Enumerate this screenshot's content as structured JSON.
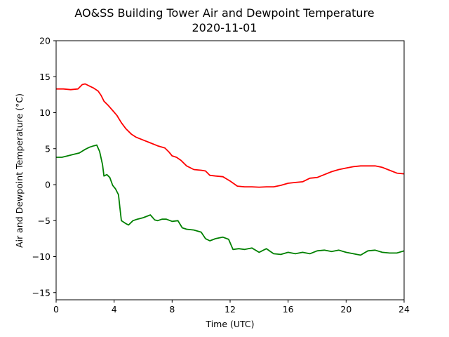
{
  "chart_data": {
    "type": "line",
    "title": "AO&SS Building Tower Air and Dewpoint Temperature",
    "subtitle": "2020-11-01",
    "xlabel": "Time (UTC)",
    "ylabel": "Air and Dewpoint Temperature (°C)",
    "xlim": [
      0,
      24
    ],
    "ylim": [
      -16,
      20
    ],
    "xticks": [
      0,
      4,
      8,
      12,
      16,
      20,
      24
    ],
    "yticks": [
      -15,
      -10,
      -5,
      0,
      5,
      10,
      15,
      20
    ],
    "grid": false,
    "legend": "none",
    "series": [
      {
        "color": "#ff0000",
        "x": [
          0,
          0.5,
          1.0,
          1.5,
          1.8,
          2.0,
          2.3,
          2.6,
          2.9,
          3.1,
          3.3,
          3.6,
          3.9,
          4.2,
          4.5,
          4.8,
          5.2,
          5.5,
          6.0,
          6.5,
          7.0,
          7.5,
          7.8,
          8.0,
          8.3,
          8.6,
          9.0,
          9.5,
          10.0,
          10.3,
          10.6,
          11.0,
          11.5,
          12.0,
          12.5,
          13.0,
          13.5,
          14.0,
          14.5,
          15.0,
          15.5,
          16.0,
          16.5,
          17.0,
          17.5,
          18.0,
          18.5,
          19.0,
          19.5,
          20.0,
          20.5,
          21.0,
          21.5,
          22.0,
          22.5,
          23.0,
          23.5,
          24.0
        ],
        "values": [
          13.3,
          13.3,
          13.2,
          13.3,
          13.9,
          14.0,
          13.7,
          13.4,
          13.0,
          12.4,
          11.6,
          11.0,
          10.3,
          9.6,
          8.6,
          7.8,
          7.0,
          6.6,
          6.2,
          5.8,
          5.4,
          5.1,
          4.5,
          4.0,
          3.8,
          3.4,
          2.6,
          2.1,
          2.0,
          1.9,
          1.3,
          1.2,
          1.1,
          0.5,
          -0.2,
          -0.3,
          -0.3,
          -0.35,
          -0.3,
          -0.3,
          -0.1,
          0.2,
          0.3,
          0.4,
          0.9,
          1.0,
          1.4,
          1.8,
          2.1,
          2.3,
          2.5,
          2.6,
          2.6,
          2.6,
          2.4,
          2.0,
          1.6,
          1.5
        ]
      },
      {
        "color": "#008000",
        "x": [
          0,
          0.4,
          0.8,
          1.2,
          1.6,
          2.0,
          2.3,
          2.6,
          2.8,
          3.0,
          3.2,
          3.3,
          3.5,
          3.7,
          3.9,
          4.1,
          4.3,
          4.4,
          4.5,
          4.8,
          5.0,
          5.3,
          5.6,
          6.0,
          6.5,
          6.8,
          7.0,
          7.3,
          7.6,
          8.0,
          8.4,
          8.7,
          9.0,
          9.5,
          10.0,
          10.3,
          10.6,
          11.0,
          11.5,
          11.9,
          12.2,
          12.6,
          13.0,
          13.5,
          14.0,
          14.5,
          15.0,
          15.5,
          16.0,
          16.5,
          17.0,
          17.5,
          18.0,
          18.5,
          19.0,
          19.5,
          20.0,
          20.5,
          21.0,
          21.5,
          22.0,
          22.5,
          23.0,
          23.5,
          24.0
        ],
        "values": [
          3.8,
          3.8,
          4.0,
          4.2,
          4.4,
          4.9,
          5.2,
          5.4,
          5.5,
          4.6,
          2.8,
          1.2,
          1.4,
          1.0,
          -0.1,
          -0.6,
          -1.4,
          -3.2,
          -5.0,
          -5.4,
          -5.6,
          -5.0,
          -4.8,
          -4.6,
          -4.2,
          -4.9,
          -5.0,
          -4.8,
          -4.8,
          -5.1,
          -5.0,
          -6.0,
          -6.2,
          -6.3,
          -6.6,
          -7.5,
          -7.8,
          -7.5,
          -7.3,
          -7.6,
          -9.0,
          -8.9,
          -9.0,
          -8.8,
          -9.4,
          -8.9,
          -9.6,
          -9.7,
          -9.4,
          -9.6,
          -9.4,
          -9.6,
          -9.2,
          -9.1,
          -9.3,
          -9.1,
          -9.4,
          -9.6,
          -9.8,
          -9.2,
          -9.1,
          -9.4,
          -9.5,
          -9.5,
          -9.2
        ]
      }
    ]
  }
}
